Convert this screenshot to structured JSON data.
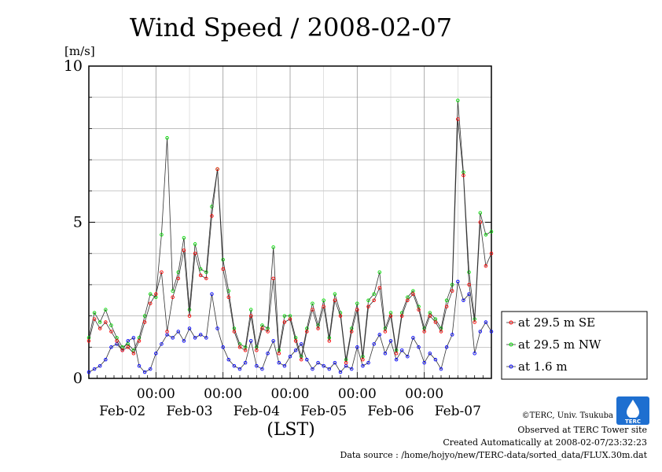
{
  "chart_data": {
    "type": "line",
    "title": "Wind Speed / 2008-02-07",
    "yunit": "[m/s]",
    "xlabel": "(LST)",
    "ylim": [
      0,
      10
    ],
    "yticks": [
      "0",
      "5",
      "10"
    ],
    "xlim": [
      0,
      144
    ],
    "grid": true,
    "legend_position": "right",
    "time_ticks": [
      "00:00",
      "00:00",
      "00:00",
      "00:00",
      "00:00"
    ],
    "day_labels": [
      "Feb-02",
      "Feb-03",
      "Feb-04",
      "Feb-05",
      "Feb-06",
      "Feb-07"
    ],
    "series": [
      {
        "name": "at 29.5 m SE",
        "color": "#ff0000",
        "x": [
          0,
          2,
          4,
          6,
          8,
          10,
          12,
          14,
          16,
          18,
          20,
          22,
          24,
          26,
          28,
          30,
          32,
          34,
          36,
          38,
          40,
          42,
          44,
          46,
          48,
          50,
          52,
          54,
          56,
          58,
          60,
          62,
          64,
          66,
          68,
          70,
          72,
          74,
          76,
          78,
          80,
          82,
          84,
          86,
          88,
          90,
          92,
          94,
          96,
          98,
          100,
          102,
          104,
          106,
          108,
          110,
          112,
          114,
          116,
          118,
          120,
          122,
          124,
          126,
          128,
          130,
          132,
          134,
          136,
          138,
          140,
          142,
          144
        ],
        "values": [
          1.2,
          1.9,
          1.6,
          1.8,
          1.5,
          1.2,
          0.9,
          1.0,
          0.8,
          1.2,
          1.8,
          2.4,
          2.7,
          3.4,
          1.5,
          2.6,
          3.2,
          4.1,
          2.0,
          4.0,
          3.3,
          3.2,
          5.2,
          6.7,
          3.5,
          2.6,
          1.5,
          1.0,
          0.9,
          2.0,
          0.9,
          1.6,
          1.5,
          3.2,
          0.8,
          1.8,
          1.9,
          1.2,
          0.6,
          1.5,
          2.2,
          1.6,
          2.3,
          1.2,
          2.5,
          2.0,
          0.5,
          1.5,
          2.2,
          0.6,
          2.3,
          2.5,
          2.9,
          1.5,
          2.0,
          0.8,
          2.0,
          2.5,
          2.7,
          2.2,
          1.5,
          2.0,
          1.8,
          1.5,
          2.3,
          2.8,
          8.3,
          6.5,
          3.0,
          1.8,
          5.0,
          3.6,
          4.0
        ]
      },
      {
        "name": "at 29.5 m NW",
        "color": "#00dd00",
        "x": [
          0,
          2,
          4,
          6,
          8,
          10,
          12,
          14,
          16,
          18,
          20,
          22,
          24,
          26,
          28,
          30,
          32,
          34,
          36,
          38,
          40,
          42,
          44,
          46,
          48,
          50,
          52,
          54,
          56,
          58,
          60,
          62,
          64,
          66,
          68,
          70,
          72,
          74,
          76,
          78,
          80,
          82,
          84,
          86,
          88,
          90,
          92,
          94,
          96,
          98,
          100,
          102,
          104,
          106,
          108,
          110,
          112,
          114,
          116,
          118,
          120,
          122,
          124,
          126,
          128,
          130,
          132,
          134,
          136,
          138,
          140,
          142,
          144
        ],
        "values": [
          1.3,
          2.1,
          1.8,
          2.2,
          1.7,
          1.3,
          1.0,
          1.1,
          0.9,
          1.3,
          2.0,
          2.7,
          2.6,
          4.6,
          7.7,
          2.8,
          3.4,
          4.5,
          2.2,
          4.3,
          3.5,
          3.4,
          5.5,
          6.7,
          3.8,
          2.8,
          1.6,
          1.1,
          1.0,
          2.2,
          1.0,
          1.7,
          1.6,
          4.2,
          0.9,
          2.0,
          2.0,
          1.3,
          0.7,
          1.6,
          2.4,
          1.7,
          2.5,
          1.3,
          2.7,
          2.1,
          0.6,
          1.6,
          2.4,
          0.7,
          2.5,
          2.7,
          3.4,
          1.6,
          2.1,
          0.9,
          2.1,
          2.6,
          2.8,
          2.3,
          1.6,
          2.1,
          1.9,
          1.6,
          2.5,
          3.0,
          8.9,
          6.6,
          3.4,
          1.9,
          5.3,
          4.6,
          4.7
        ]
      },
      {
        "name": "at 1.6 m",
        "color": "#0000ff",
        "x": [
          0,
          2,
          4,
          6,
          8,
          10,
          12,
          14,
          16,
          18,
          20,
          22,
          24,
          26,
          28,
          30,
          32,
          34,
          36,
          38,
          40,
          42,
          44,
          46,
          48,
          50,
          52,
          54,
          56,
          58,
          60,
          62,
          64,
          66,
          68,
          70,
          72,
          74,
          76,
          78,
          80,
          82,
          84,
          86,
          88,
          90,
          92,
          94,
          96,
          98,
          100,
          102,
          104,
          106,
          108,
          110,
          112,
          114,
          116,
          118,
          120,
          122,
          124,
          126,
          128,
          130,
          132,
          134,
          136,
          138,
          140,
          142,
          144
        ],
        "values": [
          0.2,
          0.3,
          0.4,
          0.6,
          1.0,
          1.1,
          0.9,
          1.2,
          1.3,
          0.4,
          0.2,
          0.3,
          0.8,
          1.1,
          1.4,
          1.3,
          1.5,
          1.2,
          1.6,
          1.3,
          1.4,
          1.3,
          2.7,
          1.6,
          1.0,
          0.6,
          0.4,
          0.3,
          0.5,
          1.2,
          0.4,
          0.3,
          0.8,
          1.2,
          0.5,
          0.4,
          0.7,
          0.9,
          1.1,
          0.6,
          0.3,
          0.5,
          0.4,
          0.3,
          0.5,
          0.2,
          0.4,
          0.3,
          1.0,
          0.4,
          0.5,
          1.1,
          1.4,
          0.8,
          1.2,
          0.6,
          0.9,
          0.7,
          1.3,
          1.0,
          0.5,
          0.8,
          0.6,
          0.3,
          1.0,
          1.4,
          3.1,
          2.5,
          2.7,
          0.8,
          1.5,
          1.8,
          1.5
        ]
      }
    ]
  },
  "footer": {
    "copyright": "©TERC, Univ. Tsukuba",
    "observed": "Observed at TERC Tower site",
    "created": "Created Automatically at 2008-02-07/23:32:23",
    "source": "Data source : /home/hojyo/new/TERC-data/sorted_data/FLUX.30m.dat",
    "logo_text": "TERC"
  }
}
